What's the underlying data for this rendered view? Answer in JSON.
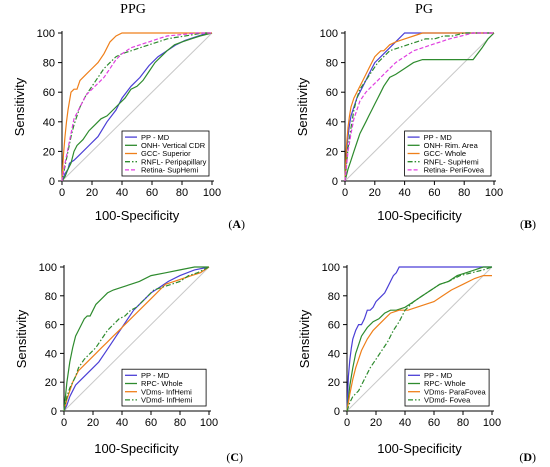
{
  "headers": {
    "left": "PPG",
    "right": "PG"
  },
  "chart_data": [
    {
      "type": "line",
      "panel": "A",
      "xlabel": "100-Specificity",
      "ylabel": "Sensitivity",
      "xlim": [
        0,
        100
      ],
      "ylim": [
        0,
        100
      ],
      "xticks": [
        0,
        20,
        40,
        60,
        80,
        100
      ],
      "yticks": [
        0,
        20,
        40,
        60,
        80,
        100
      ],
      "legend_position": "bottom-right",
      "series": [
        {
          "name": "PP - MD",
          "color": "#4b3fd6",
          "dash": "",
          "x": [
            0,
            2,
            4,
            5,
            8,
            12,
            18,
            24,
            30,
            36,
            40,
            46,
            52,
            58,
            64,
            70,
            76,
            82,
            88,
            94,
            100
          ],
          "y": [
            0,
            5,
            8,
            12,
            14,
            18,
            24,
            30,
            40,
            48,
            56,
            64,
            70,
            78,
            84,
            88,
            92,
            95,
            97,
            99,
            100
          ]
        },
        {
          "name": "ONH- Vertical CDR",
          "color": "#2e8b2e",
          "dash": "",
          "x": [
            0,
            2,
            4,
            6,
            8,
            10,
            14,
            18,
            22,
            26,
            30,
            34,
            38,
            42,
            46,
            50,
            54,
            58,
            62,
            66,
            70,
            75,
            80,
            86,
            92,
            100
          ],
          "y": [
            0,
            3,
            8,
            12,
            20,
            24,
            28,
            34,
            38,
            42,
            44,
            48,
            52,
            56,
            62,
            64,
            68,
            74,
            80,
            84,
            88,
            92,
            94,
            96,
            98,
            100
          ]
        },
        {
          "name": "GCC- Superior",
          "color": "#ef7f1a",
          "dash": "",
          "x": [
            0,
            1,
            2,
            3,
            4,
            6,
            8,
            10,
            12,
            16,
            20,
            24,
            28,
            32,
            36,
            40,
            46,
            52,
            60,
            70,
            80,
            90,
            100
          ],
          "y": [
            0,
            18,
            30,
            40,
            48,
            60,
            62,
            62,
            68,
            72,
            76,
            80,
            86,
            94,
            98,
            100,
            100,
            100,
            100,
            100,
            100,
            100,
            100
          ]
        },
        {
          "name": "RNFL- Peripapillary",
          "color": "#2e8b2e",
          "dash": "5,2,1.5,2",
          "x": [
            0,
            2,
            4,
            6,
            8,
            12,
            16,
            20,
            24,
            28,
            32,
            36,
            40,
            46,
            52,
            58,
            64,
            70,
            76,
            82,
            88,
            94,
            100
          ],
          "y": [
            0,
            10,
            20,
            30,
            38,
            50,
            58,
            64,
            70,
            76,
            80,
            84,
            86,
            88,
            90,
            92,
            94,
            96,
            97,
            98,
            99,
            100,
            100
          ]
        },
        {
          "name": "Retina- SupHemi",
          "color": "#e040e0",
          "dash": "4,2",
          "x": [
            0,
            2,
            4,
            6,
            8,
            12,
            16,
            20,
            24,
            28,
            32,
            36,
            40,
            46,
            52,
            58,
            64,
            70,
            80,
            90,
            100
          ],
          "y": [
            0,
            12,
            22,
            32,
            42,
            50,
            58,
            62,
            66,
            70,
            76,
            82,
            86,
            90,
            92,
            94,
            96,
            98,
            99,
            100,
            100
          ]
        }
      ]
    },
    {
      "type": "line",
      "panel": "B",
      "xlabel": "100-Specificity",
      "ylabel": "Sensitivity",
      "xlim": [
        0,
        100
      ],
      "ylim": [
        0,
        100
      ],
      "xticks": [
        0,
        20,
        40,
        60,
        80,
        100
      ],
      "yticks": [
        0,
        20,
        40,
        60,
        80,
        100
      ],
      "legend_position": "bottom-right",
      "series": [
        {
          "name": "PP - MD",
          "color": "#4b3fd6",
          "dash": "",
          "x": [
            0,
            1,
            2,
            3,
            4,
            6,
            8,
            10,
            12,
            14,
            16,
            18,
            20,
            24,
            28,
            32,
            36,
            40,
            46,
            52,
            60,
            70,
            80,
            90,
            100
          ],
          "y": [
            0,
            20,
            30,
            38,
            44,
            50,
            56,
            60,
            64,
            68,
            72,
            76,
            80,
            84,
            88,
            92,
            96,
            100,
            100,
            100,
            100,
            100,
            100,
            100,
            100
          ]
        },
        {
          "name": "ONH- Rim. Area",
          "color": "#2e8b2e",
          "dash": "",
          "x": [
            0,
            2,
            4,
            6,
            8,
            10,
            12,
            14,
            16,
            18,
            20,
            22,
            24,
            26,
            30,
            34,
            40,
            46,
            52,
            60,
            70,
            80,
            86,
            92,
            96,
            100
          ],
          "y": [
            0,
            8,
            14,
            20,
            26,
            32,
            36,
            40,
            44,
            48,
            52,
            56,
            60,
            64,
            70,
            72,
            76,
            80,
            82,
            82,
            82,
            82,
            82,
            90,
            96,
            100
          ]
        },
        {
          "name": "GCC- Whole",
          "color": "#ef7f1a",
          "dash": "",
          "x": [
            0,
            1,
            2,
            3,
            4,
            6,
            8,
            10,
            12,
            14,
            16,
            18,
            20,
            22,
            24,
            26,
            28,
            30,
            34,
            40,
            46,
            52,
            60,
            70,
            80,
            90,
            100
          ],
          "y": [
            0,
            24,
            36,
            44,
            50,
            56,
            60,
            64,
            68,
            72,
            76,
            80,
            84,
            86,
            88,
            88,
            90,
            92,
            94,
            96,
            98,
            100,
            100,
            100,
            100,
            100,
            100
          ]
        },
        {
          "name": "RNFL- SupHemi",
          "color": "#2e8b2e",
          "dash": "5,2,1.5,2",
          "x": [
            0,
            2,
            4,
            6,
            8,
            10,
            14,
            18,
            22,
            26,
            30,
            36,
            42,
            48,
            54,
            60,
            66,
            72,
            80,
            90,
            100
          ],
          "y": [
            0,
            22,
            36,
            48,
            56,
            62,
            68,
            74,
            80,
            84,
            88,
            90,
            92,
            94,
            96,
            96,
            98,
            98,
            100,
            100,
            100
          ]
        },
        {
          "name": "Retina- PeriFovea",
          "color": "#e040e0",
          "dash": "4,2",
          "x": [
            0,
            2,
            4,
            6,
            8,
            10,
            14,
            18,
            22,
            26,
            30,
            34,
            40,
            46,
            52,
            58,
            64,
            70,
            78,
            86,
            94,
            100
          ],
          "y": [
            0,
            20,
            32,
            42,
            48,
            54,
            60,
            64,
            68,
            72,
            76,
            80,
            84,
            88,
            90,
            92,
            94,
            96,
            98,
            100,
            100,
            100
          ]
        }
      ]
    },
    {
      "type": "line",
      "panel": "C",
      "xlabel": "100-Specificity",
      "ylabel": "Sensitivity",
      "xlim": [
        0,
        100
      ],
      "ylim": [
        0,
        100
      ],
      "xticks": [
        0,
        20,
        40,
        60,
        80,
        100
      ],
      "yticks": [
        0,
        20,
        40,
        60,
        80,
        100
      ],
      "legend_position": "bottom-right",
      "series": [
        {
          "name": "PP - MD",
          "color": "#4b3fd6",
          "dash": "",
          "x": [
            0,
            2,
            4,
            6,
            8,
            12,
            16,
            20,
            24,
            28,
            32,
            36,
            40,
            44,
            48,
            52,
            56,
            60,
            66,
            72,
            80,
            90,
            100
          ],
          "y": [
            0,
            4,
            10,
            14,
            18,
            22,
            26,
            30,
            34,
            40,
            46,
            52,
            58,
            64,
            70,
            74,
            78,
            82,
            86,
            90,
            94,
            98,
            100
          ]
        },
        {
          "name": "RPC- Whole",
          "color": "#2e8b2e",
          "dash": "",
          "x": [
            0,
            2,
            4,
            6,
            8,
            10,
            12,
            14,
            16,
            18,
            20,
            22,
            24,
            26,
            28,
            30,
            34,
            40,
            46,
            52,
            60,
            70,
            80,
            90,
            100
          ],
          "y": [
            0,
            20,
            34,
            44,
            52,
            56,
            60,
            64,
            66,
            66,
            70,
            74,
            76,
            78,
            80,
            82,
            84,
            86,
            88,
            90,
            94,
            96,
            98,
            100,
            100
          ]
        },
        {
          "name": "VDms- InfHemi",
          "color": "#ef7f1a",
          "dash": "",
          "x": [
            0,
            2,
            4,
            6,
            8,
            10,
            14,
            18,
            22,
            26,
            30,
            34,
            38,
            42,
            46,
            50,
            54,
            58,
            62,
            66,
            70,
            76,
            82,
            88,
            94,
            100
          ],
          "y": [
            0,
            8,
            14,
            20,
            24,
            28,
            32,
            36,
            40,
            44,
            48,
            52,
            56,
            60,
            64,
            68,
            72,
            76,
            80,
            84,
            88,
            90,
            92,
            94,
            96,
            100
          ]
        },
        {
          "name": "VDmd- InfHemi",
          "color": "#2e8b2e",
          "dash": "5,2,1.5,2",
          "x": [
            0,
            2,
            4,
            6,
            8,
            10,
            14,
            18,
            22,
            26,
            30,
            34,
            38,
            42,
            46,
            50,
            54,
            58,
            62,
            68,
            74,
            80,
            86,
            92,
            100
          ],
          "y": [
            0,
            10,
            16,
            20,
            24,
            30,
            36,
            40,
            44,
            50,
            56,
            60,
            64,
            66,
            70,
            72,
            76,
            80,
            84,
            86,
            88,
            90,
            94,
            96,
            100
          ]
        }
      ]
    },
    {
      "type": "line",
      "panel": "D",
      "xlabel": "100-Specificity",
      "ylabel": "Sensitivity",
      "xlim": [
        0,
        100
      ],
      "ylim": [
        0,
        100
      ],
      "xticks": [
        0,
        20,
        40,
        60,
        80,
        100
      ],
      "yticks": [
        0,
        20,
        40,
        60,
        80,
        100
      ],
      "legend_position": "bottom-right",
      "series": [
        {
          "name": "PP - MD",
          "color": "#4b3fd6",
          "dash": "",
          "x": [
            0,
            1,
            2,
            3,
            4,
            6,
            8,
            10,
            12,
            14,
            16,
            18,
            20,
            22,
            24,
            26,
            28,
            30,
            32,
            34,
            36,
            40,
            50,
            60,
            70,
            80,
            90,
            100
          ],
          "y": [
            0,
            24,
            36,
            44,
            50,
            56,
            60,
            60,
            64,
            70,
            70,
            72,
            76,
            78,
            80,
            82,
            86,
            90,
            94,
            96,
            100,
            100,
            100,
            100,
            100,
            100,
            100,
            100
          ]
        },
        {
          "name": "RPC- Whole",
          "color": "#2e8b2e",
          "dash": "",
          "x": [
            0,
            2,
            4,
            6,
            8,
            10,
            14,
            18,
            22,
            26,
            30,
            34,
            40,
            46,
            52,
            58,
            64,
            70,
            76,
            82,
            88,
            94,
            100
          ],
          "y": [
            0,
            18,
            30,
            40,
            46,
            52,
            58,
            62,
            64,
            68,
            70,
            70,
            72,
            76,
            80,
            84,
            88,
            90,
            94,
            96,
            98,
            100,
            100
          ]
        },
        {
          "name": "VDms- ParaFovea",
          "color": "#ef7f1a",
          "dash": "",
          "x": [
            0,
            2,
            4,
            6,
            8,
            10,
            14,
            18,
            22,
            26,
            30,
            36,
            42,
            48,
            54,
            60,
            66,
            72,
            80,
            88,
            94,
            100
          ],
          "y": [
            0,
            12,
            22,
            30,
            36,
            42,
            50,
            56,
            60,
            64,
            68,
            70,
            70,
            72,
            74,
            76,
            80,
            84,
            88,
            92,
            94,
            94
          ]
        },
        {
          "name": "VDmd- Fovea",
          "color": "#2e8b2e",
          "dash": "5,2,1.5,2",
          "x": [
            0,
            2,
            4,
            6,
            8,
            10,
            12,
            16,
            20,
            24,
            28,
            32,
            36,
            40,
            46,
            52,
            58,
            64,
            70,
            78,
            86,
            94,
            100
          ],
          "y": [
            0,
            6,
            10,
            12,
            14,
            18,
            22,
            30,
            36,
            42,
            48,
            56,
            62,
            70,
            76,
            80,
            84,
            88,
            90,
            94,
            96,
            98,
            100
          ]
        }
      ]
    }
  ]
}
